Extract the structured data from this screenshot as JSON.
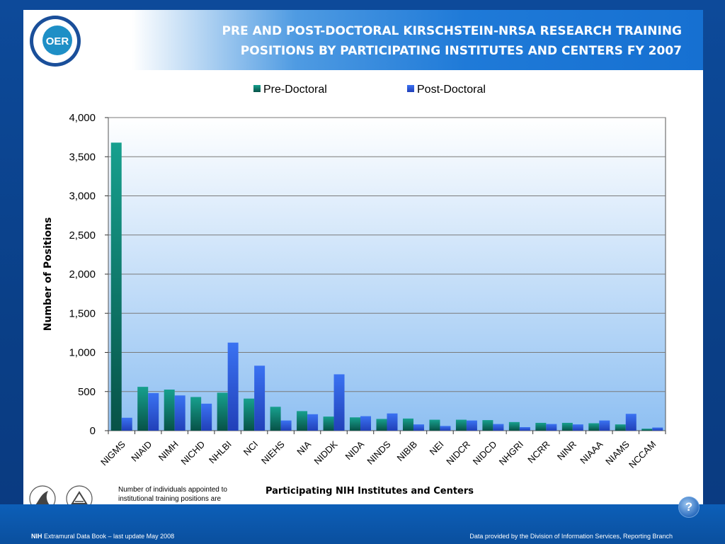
{
  "header": {
    "logo_text": "OER",
    "title_line1": "PRE AND POST-DOCTORAL KIRSCHSTEIN-NRSA RESEARCH TRAINING",
    "title_line2": "POSITIONS BY PARTICIPATING INSTITUTES AND CENTERS FY 2007"
  },
  "note": "Number of individuals appointed to institutional training positions are estimates",
  "footer": {
    "left_brand": "NIH",
    "left_text": "Extramural Data Book – last update May 2008",
    "right_text": "Data provided by the Division of Information Services, Reporting Branch"
  },
  "help": {
    "label": "?"
  },
  "colors": {
    "pre_doctoral": "#0e8a7c",
    "post_doctoral": "#2d5ee8",
    "plot_bg_top": "#ffffff",
    "plot_bg_bottom": "#8fc0f2"
  },
  "icons": [
    "hhs-eagle-icon",
    "nih-seal-icon",
    "oer-logo-icon",
    "help-icon"
  ],
  "chart_data": {
    "type": "bar",
    "categories": [
      "NIGMS",
      "NIAID",
      "NIMH",
      "NICHD",
      "NHLBI",
      "NCI",
      "NIEHS",
      "NIA",
      "NIDDK",
      "NIDA",
      "NINDS",
      "NIBIB",
      "NEI",
      "NIDCR",
      "NIDCD",
      "NHGRI",
      "NCRR",
      "NINR",
      "NIAAA",
      "NIAMS",
      "NCCAM"
    ],
    "series": [
      {
        "name": "Pre-Doctoral",
        "values": [
          3680,
          560,
          525,
          430,
          485,
          410,
          305,
          250,
          180,
          170,
          150,
          155,
          140,
          140,
          135,
          110,
          100,
          100,
          95,
          80,
          25
        ]
      },
      {
        "name": "Post-Doctoral",
        "values": [
          165,
          480,
          450,
          345,
          1125,
          830,
          130,
          210,
          720,
          185,
          220,
          80,
          60,
          130,
          85,
          45,
          85,
          80,
          130,
          215,
          40
        ]
      }
    ],
    "xlabel": "Participating NIH Institutes and Centers",
    "ylabel": "Number of Positions",
    "ylim": [
      0,
      4000
    ],
    "yticks": [
      0,
      500,
      1000,
      1500,
      2000,
      2500,
      3000,
      3500,
      4000
    ],
    "ytick_labels": [
      "0",
      "500",
      "1,000",
      "1,500",
      "2,000",
      "2,500",
      "3,000",
      "3,500",
      "4,000"
    ],
    "grid": true,
    "legend": "top-center"
  }
}
